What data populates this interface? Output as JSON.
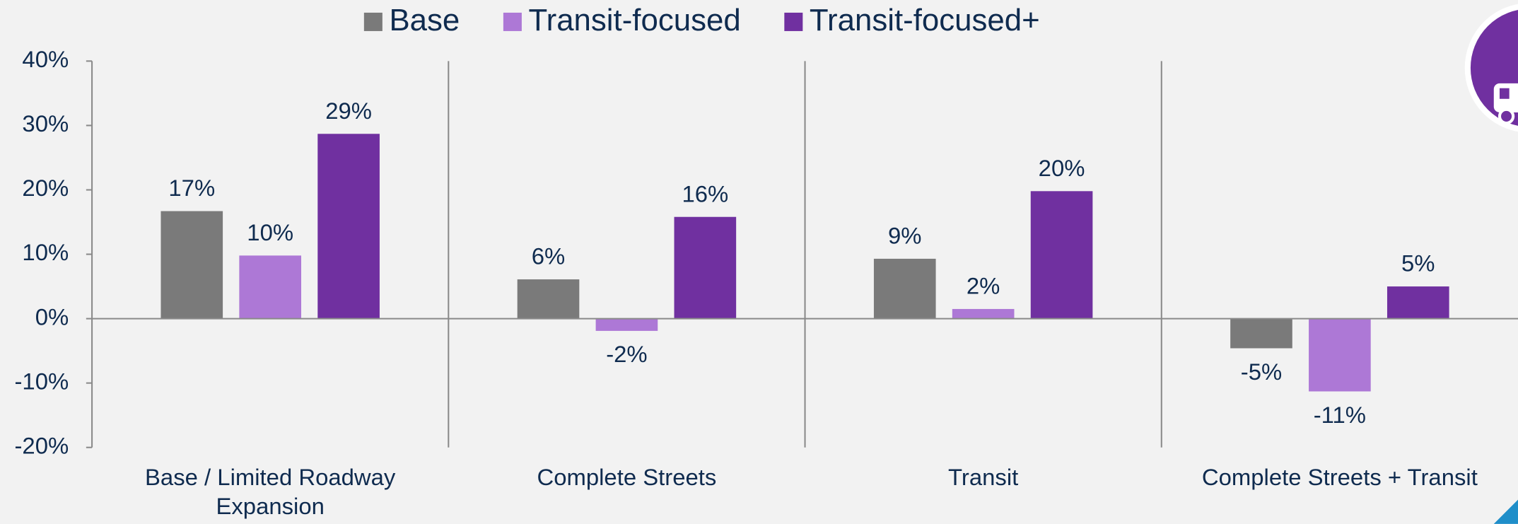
{
  "chart_data": {
    "type": "bar",
    "categories": [
      "Base / Limited Roadway Expansion",
      "Complete Streets",
      "Transit",
      "Complete Streets + Transit"
    ],
    "series": [
      {
        "name": "Base",
        "color": "#7a7a7a",
        "values": [
          16.7,
          6.1,
          9.3,
          -4.6
        ],
        "value_labels": [
          "17%",
          "6%",
          "9%",
          "-5%"
        ]
      },
      {
        "name": "Transit-focused",
        "color": "#ad78d6",
        "values": [
          9.8,
          -1.9,
          1.5,
          -11.3
        ],
        "value_labels": [
          "10%",
          "-2%",
          "2%",
          "-11%"
        ]
      },
      {
        "name": "Transit-focused+",
        "color": "#7030a0",
        "values": [
          28.7,
          15.8,
          19.8,
          5.0
        ],
        "value_labels": [
          "29%",
          "16%",
          "20%",
          "5%"
        ]
      }
    ],
    "ylim": [
      -20,
      40
    ],
    "yticks": [
      {
        "value": -20,
        "label": "-20%"
      },
      {
        "value": -10,
        "label": "-10%"
      },
      {
        "value": 0,
        "label": "0%"
      },
      {
        "value": 10,
        "label": "10%"
      },
      {
        "value": 20,
        "label": "20%"
      },
      {
        "value": 30,
        "label": "30%"
      },
      {
        "value": 40,
        "label": "40%"
      }
    ],
    "legend": "top"
  }
}
